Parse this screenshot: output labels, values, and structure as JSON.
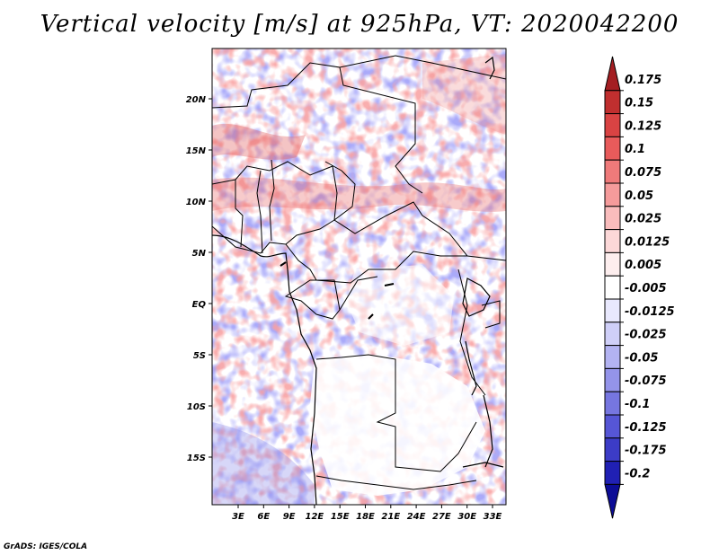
{
  "title": "Vertical velocity [m/s] at 925hPa, VT: 2020042200",
  "credit": "GrADS: IGES/COLA",
  "map": {
    "lat_ticks": [
      "20N",
      "15N",
      "10N",
      "5N",
      "EQ",
      "5S",
      "10S",
      "15S"
    ],
    "lon_ticks": [
      "3E",
      "6E",
      "9E",
      "12E",
      "15E",
      "18E",
      "21E",
      "24E",
      "27E",
      "30E",
      "33E"
    ]
  },
  "colorbar": {
    "labels": [
      "0.175",
      "0.15",
      "0.125",
      "0.1",
      "0.075",
      "0.05",
      "0.025",
      "0.0125",
      "0.005",
      "-0.005",
      "-0.0125",
      "-0.025",
      "-0.05",
      "-0.075",
      "-0.1",
      "-0.125",
      "-0.175",
      "-0.2"
    ],
    "colors": [
      "#a41e22",
      "#c02f2f",
      "#d94343",
      "#e85b5b",
      "#ef7a7a",
      "#f59b9b",
      "#f9bcbc",
      "#fcd8d8",
      "#fdeeee",
      "#ffffff",
      "#e8e8fd",
      "#cfcff8",
      "#b3b3f2",
      "#9494ea",
      "#7676e0",
      "#5656d6",
      "#3c3cc7",
      "#2020b4",
      "#0c0c96"
    ]
  }
}
